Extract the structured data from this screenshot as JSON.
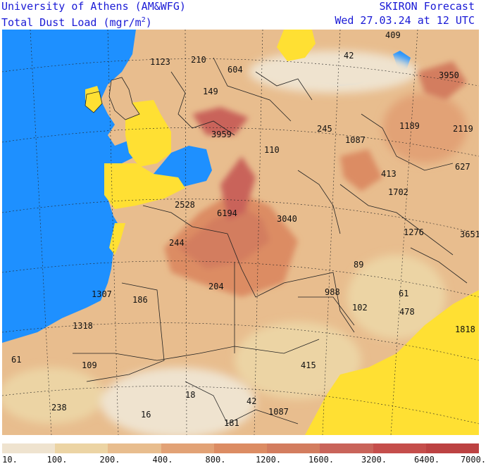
{
  "header": {
    "institution": "University of Athens (AM&WFG)",
    "field_label": "Total Dust Load (mgr/m",
    "field_exp": "2",
    "field_close": ")",
    "model": "SKIRON Forecast",
    "valid_time": "Wed 27.03.24 at 12 UTC"
  },
  "colors": {
    "sea": "#1e90ff",
    "low": "#ffe033",
    "scale": [
      "#efe3cf",
      "#ecd4a4",
      "#e8bd8e",
      "#e2a276",
      "#dc8c63",
      "#d37d5f",
      "#c9645a",
      "#c54e4b",
      "#bc4242"
    ]
  },
  "colorbar": {
    "ticks": [
      "10.",
      "100.",
      "200.",
      "400.",
      "800.",
      "1200.",
      "1600.",
      "3200.",
      "6400.",
      "7000."
    ]
  },
  "map_labels": [
    {
      "id": "l1",
      "text": "1123"
    },
    {
      "id": "l2",
      "text": "210"
    },
    {
      "id": "l3",
      "text": "604"
    },
    {
      "id": "l4",
      "text": "42"
    },
    {
      "id": "l5",
      "text": "409"
    },
    {
      "id": "l6",
      "text": "3950"
    },
    {
      "id": "l7",
      "text": "149"
    },
    {
      "id": "l8",
      "text": "3959"
    },
    {
      "id": "l9",
      "text": "110"
    },
    {
      "id": "l10",
      "text": "245"
    },
    {
      "id": "l11",
      "text": "1087"
    },
    {
      "id": "l12",
      "text": "1189"
    },
    {
      "id": "l13",
      "text": "2119"
    },
    {
      "id": "l14",
      "text": "627"
    },
    {
      "id": "l15",
      "text": "413"
    },
    {
      "id": "l16",
      "text": "1702"
    },
    {
      "id": "l17",
      "text": "2528"
    },
    {
      "id": "l18",
      "text": "6194"
    },
    {
      "id": "l19",
      "text": "3040"
    },
    {
      "id": "l20",
      "text": "1276"
    },
    {
      "id": "l21",
      "text": "3651"
    },
    {
      "id": "l22",
      "text": "244"
    },
    {
      "id": "l23",
      "text": "89"
    },
    {
      "id": "l24",
      "text": "1307"
    },
    {
      "id": "l25",
      "text": "186"
    },
    {
      "id": "l26",
      "text": "204"
    },
    {
      "id": "l27",
      "text": "988"
    },
    {
      "id": "l28",
      "text": "61"
    },
    {
      "id": "l29",
      "text": "102"
    },
    {
      "id": "l30",
      "text": "478"
    },
    {
      "id": "l31",
      "text": "1318"
    },
    {
      "id": "l32",
      "text": "1818"
    },
    {
      "id": "l33",
      "text": "61"
    },
    {
      "id": "l34",
      "text": "109"
    },
    {
      "id": "l35",
      "text": "415"
    },
    {
      "id": "l36",
      "text": "18"
    },
    {
      "id": "l37",
      "text": "42"
    },
    {
      "id": "l38",
      "text": "238"
    },
    {
      "id": "l39",
      "text": "16"
    },
    {
      "id": "l40",
      "text": "1087"
    },
    {
      "id": "l41",
      "text": "181"
    }
  ]
}
